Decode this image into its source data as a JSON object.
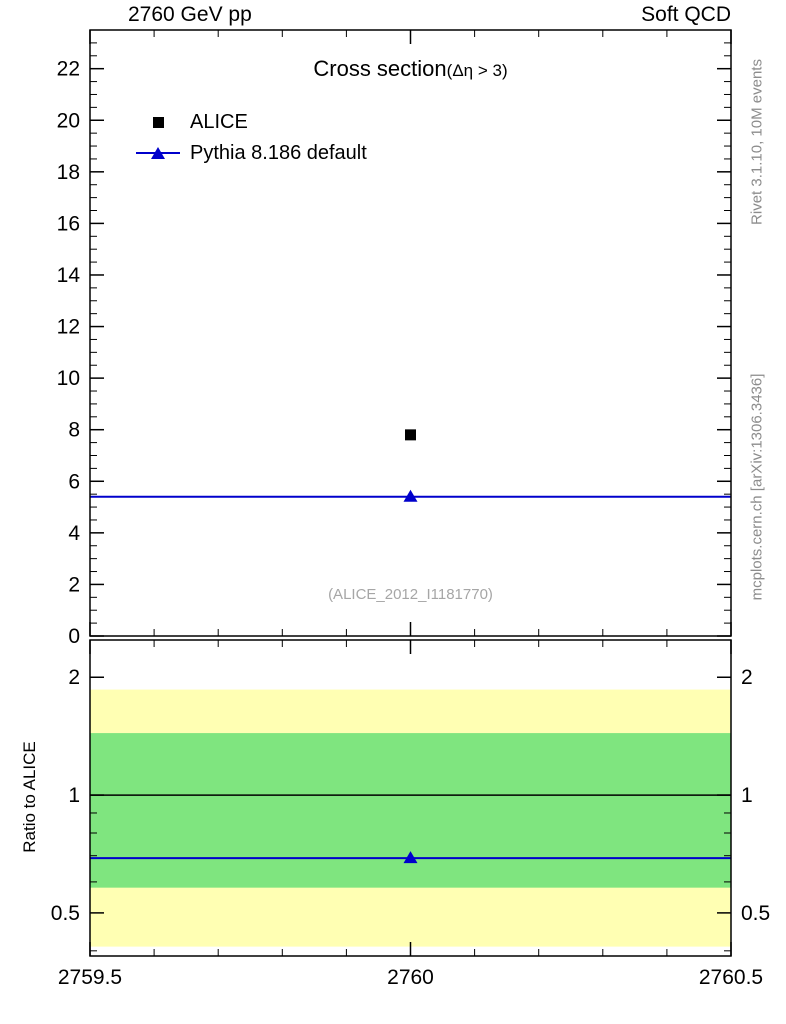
{
  "header": {
    "left": "2760 GeV pp",
    "right": "Soft QCD"
  },
  "side_notes": {
    "top_right": "Rivet 3.1.10, 10M events",
    "bottom_right": "mcplots.cern.ch [arXiv:1306.3436]"
  },
  "legend": {
    "alice": "ALICE",
    "pythia": "Pythia 8.186 default"
  },
  "colors": {
    "mc_line": "#0000cc",
    "data_marker": "#000000",
    "band_outer": "#ffffb3",
    "band_inner": "#7fe57f",
    "side_text": "#8c8c8c",
    "watermark": "#a6a6a6"
  },
  "chart_data": [
    {
      "id": "main",
      "type": "scatter",
      "title": "Cross section",
      "title_suffix": "(Δη > 3)",
      "watermark": "(ALICE_2012_I1181770)",
      "xlim": [
        2759.5,
        2760.5
      ],
      "ylim": [
        0,
        23.5
      ],
      "grid": false,
      "legend_position": "top-left",
      "xticks": {
        "values": [
          2759.5,
          2760,
          2760.5
        ],
        "labels": [
          "2759.5",
          "2760",
          "2760.5"
        ],
        "show_labels": false,
        "minor_step": 0.1
      },
      "yticks": {
        "values": [
          0,
          2,
          4,
          6,
          8,
          10,
          12,
          14,
          16,
          18,
          20,
          22
        ],
        "labels": [
          "0",
          "2",
          "4",
          "6",
          "8",
          "10",
          "12",
          "14",
          "16",
          "18",
          "20",
          "22"
        ],
        "minor_step": 0.5,
        "mirror_labels": false
      },
      "series": [
        {
          "name": "ALICE",
          "marker": "square",
          "color": "#000000",
          "points": [
            {
              "x": 2760,
              "y": 7.8
            }
          ]
        },
        {
          "name": "Pythia 8.186 default",
          "marker": "triangle",
          "color": "#0000cc",
          "line_y": 5.4,
          "points": [
            {
              "x": 2760,
              "y": 5.4
            }
          ]
        }
      ]
    },
    {
      "id": "ratio",
      "type": "ratio",
      "ylabel": "Ratio to ALICE",
      "yscale": "log",
      "xlim": [
        2759.5,
        2760.5
      ],
      "ylim": [
        0.388,
        2.49
      ],
      "xticks": {
        "values": [
          2759.5,
          2760,
          2760.5
        ],
        "labels": [
          "2759.5",
          "2760",
          "2760.5"
        ],
        "show_labels": true,
        "minor_step": 0.1
      },
      "yticks": {
        "values": [
          0.5,
          1,
          2
        ],
        "labels": [
          "0.5",
          "1",
          "2"
        ],
        "minor_values": [
          0.4,
          0.6,
          0.7,
          0.8,
          0.9
        ],
        "mirror_labels": true
      },
      "bands": [
        {
          "name": "outer-uncertainty-band",
          "color": "#ffffb3",
          "lo": 0.41,
          "hi": 1.86
        },
        {
          "name": "inner-uncertainty-band",
          "color": "#7fe57f",
          "lo": 0.58,
          "hi": 1.44
        }
      ],
      "ref_line": 1.0,
      "series": [
        {
          "name": "Pythia 8.186 default",
          "marker": "triangle",
          "color": "#0000cc",
          "line_y": 0.69,
          "points": [
            {
              "x": 2760,
              "y": 0.69
            }
          ]
        }
      ]
    }
  ]
}
